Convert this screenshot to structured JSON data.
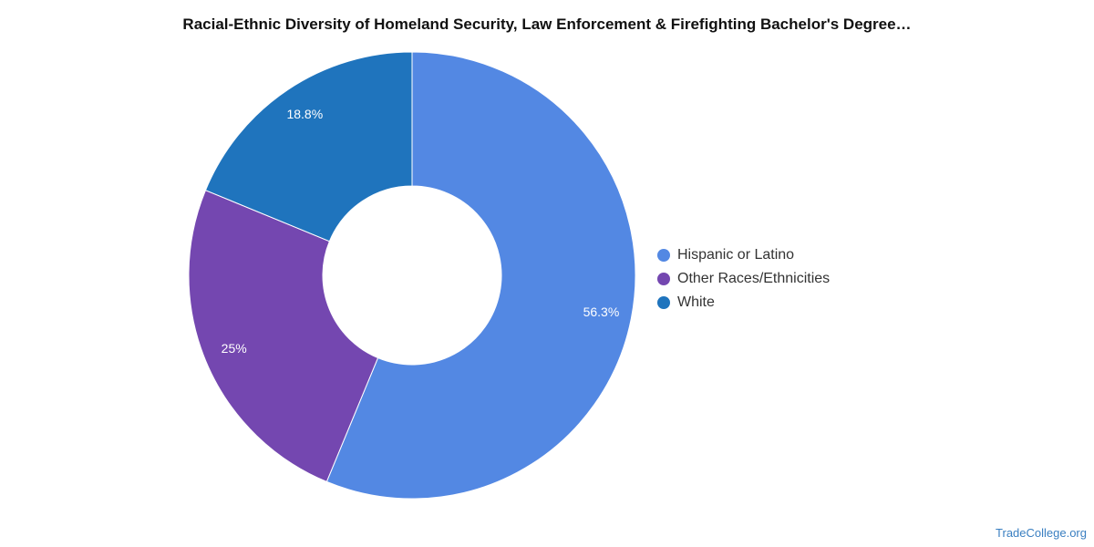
{
  "chart_data": {
    "type": "pie",
    "donut": true,
    "title": "Racial-Ethnic Diversity of Homeland Security, Law Enforcement & Firefighting Bachelor's Degree…",
    "categories": [
      "Hispanic or Latino",
      "Other Races/Ethnicities",
      "White"
    ],
    "values": [
      56.3,
      25,
      18.8
    ],
    "data_labels": [
      "56.3%",
      "25%",
      "18.8%"
    ],
    "colors": [
      "#5388e3",
      "#7447b0",
      "#1f74bd"
    ],
    "legend_position": "right"
  },
  "credit": "TradeCollege.org"
}
